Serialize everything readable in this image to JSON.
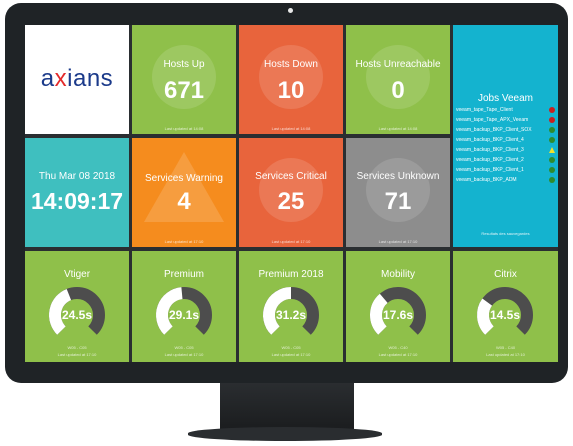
{
  "logo": {
    "prefix": "a",
    "mark": "x",
    "suffix": "ians"
  },
  "hosts_up": {
    "label": "Hosts Up",
    "value": "671",
    "updated": "Last updated at 14:08"
  },
  "hosts_down": {
    "label": "Hosts Down",
    "value": "10",
    "updated": "Last updated at 14:08"
  },
  "hosts_unreachable": {
    "label": "Hosts Unreachable",
    "value": "0",
    "updated": "Last updated at 14:08"
  },
  "clock": {
    "date": "Thu Mar 08 2018",
    "time": "14:09:17"
  },
  "services_warning": {
    "label": "Services Warning",
    "value": "4",
    "updated": "Last updated at 17:10"
  },
  "services_critical": {
    "label": "Services Critical",
    "value": "25",
    "updated": "Last updated at 17:10"
  },
  "services_unknown": {
    "label": "Services Unknown",
    "value": "71",
    "updated": "Last updated at 17:10"
  },
  "jobs": {
    "title": "Jobs Veeam",
    "items": [
      {
        "name": "veeam_tape_Tape_Client",
        "status": "error"
      },
      {
        "name": "veeam_tape_Tape_APX_Veeam",
        "status": "error"
      },
      {
        "name": "veeam_backup_BKP_Client_SOX",
        "status": "ok"
      },
      {
        "name": "veeam_backup_BKP_Client_4",
        "status": "ok"
      },
      {
        "name": "veeam_backup_BKP_Client_3",
        "status": "warning"
      },
      {
        "name": "veeam_backup_BKP_Client_2",
        "status": "ok"
      },
      {
        "name": "veeam_backup_BKP_Client_1",
        "status": "ok"
      },
      {
        "name": "veeam_backup_BKP_ADM",
        "status": "ok"
      }
    ],
    "footer": "Resultats des sauvegardes"
  },
  "gauges": [
    {
      "label": "Vtiger",
      "value": "24.5s",
      "fraction": 0.42,
      "range": "W05 - C05",
      "updated": "Last updated at 17:10"
    },
    {
      "label": "Premium",
      "value": "29.1s",
      "fraction": 0.48,
      "range": "W05 - C05",
      "updated": "Last updated at 17:10"
    },
    {
      "label": "Premium 2018",
      "value": "31.2s",
      "fraction": 0.5,
      "range": "W05 - C05",
      "updated": "Last updated at 17:10"
    },
    {
      "label": "Mobility",
      "value": "17.6s",
      "fraction": 0.35,
      "range": "W05 - C40",
      "updated": "Last updated at 17:10"
    },
    {
      "label": "Citrix",
      "value": "14.5s",
      "fraction": 0.3,
      "range": "W05 - C40",
      "updated": "Last updated at 17:10"
    }
  ],
  "colors": {
    "green": "#8fc04a",
    "red": "#e8643c",
    "orange": "#f58c1e",
    "gray": "#8d8d8d",
    "teal": "#3fbfbf",
    "cyan": "#14b3cf",
    "gauge_track": "#4d4d4d",
    "gauge_fill": "#ffffff"
  }
}
